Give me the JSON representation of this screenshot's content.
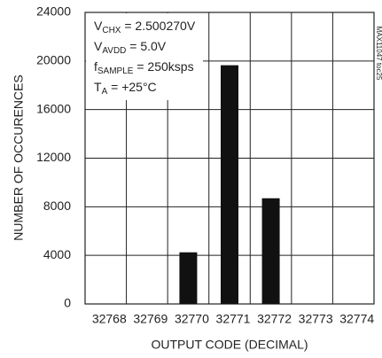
{
  "chart_data": {
    "type": "bar",
    "xlabel": "OUTPUT CODE (DECIMAL)",
    "ylabel": "NUMBER OF OCCURENCES",
    "categories": [
      "32768",
      "32769",
      "32770",
      "32771",
      "32772",
      "32773",
      "32774"
    ],
    "values": [
      0,
      0,
      4250,
      19650,
      8700,
      0,
      0
    ],
    "color": "#111111",
    "ylim": [
      0,
      24000
    ],
    "yticks": [
      0,
      4000,
      8000,
      12000,
      16000,
      20000,
      24000
    ],
    "grid": true,
    "annotations": [
      {
        "main": "V",
        "sub": "CHX",
        "rest": " = 2.500270V"
      },
      {
        "main": "V",
        "sub": "AVDD",
        "rest": " = 5.0V"
      },
      {
        "main": "f",
        "sub": "SAMPLE",
        "rest": " = 250ksps"
      },
      {
        "main": "T",
        "sub": "A",
        "rest": " = +25°C"
      }
    ],
    "figure_id": "MAX11047 toc25"
  }
}
